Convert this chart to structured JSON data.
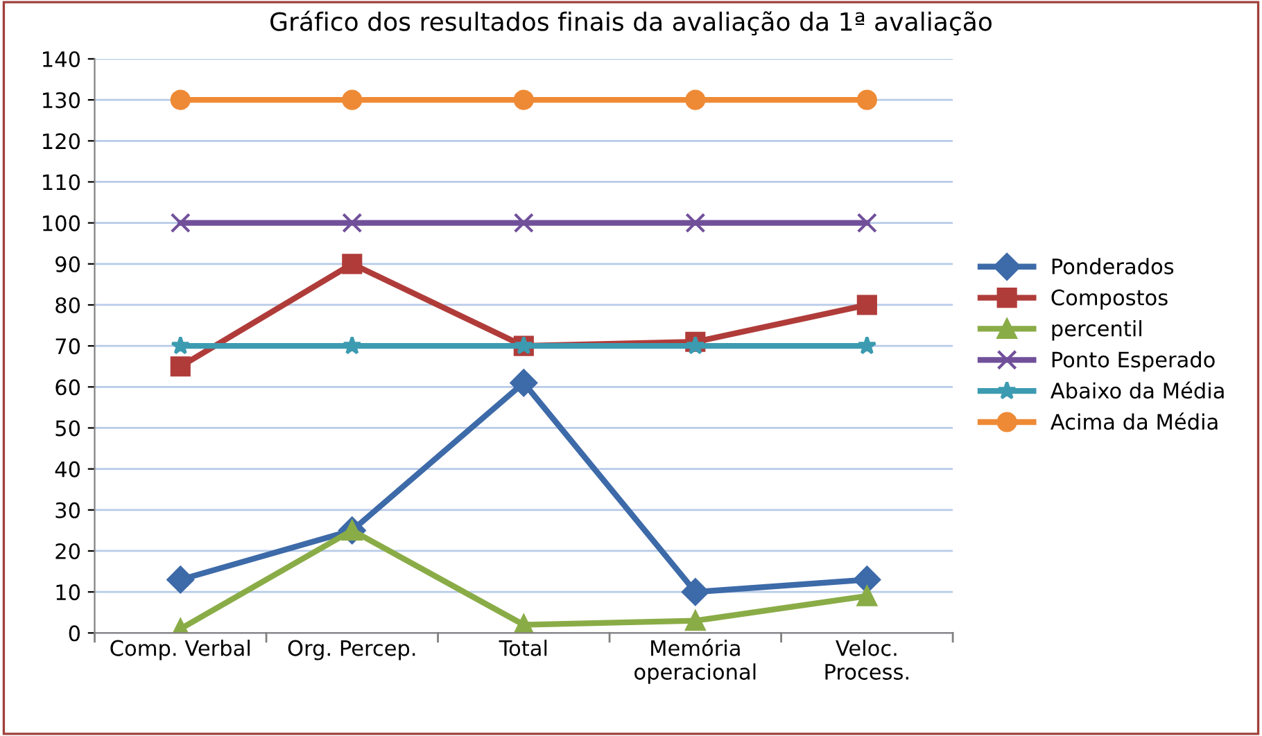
{
  "chart_data": {
    "type": "line",
    "title": "Gráfico dos resultados finais da avaliação da 1ª avaliação",
    "categories": [
      "Comp. Verbal",
      "Org. Percep.",
      "Total",
      "Memória\noperacional",
      "Veloc.\nProcess."
    ],
    "series": [
      {
        "name": "Ponderados",
        "color": "#3d6aa8",
        "marker": "diamond",
        "values": [
          13,
          25,
          61,
          10,
          13
        ]
      },
      {
        "name": "Compostos",
        "color": "#b03c3a",
        "marker": "square",
        "values": [
          65,
          90,
          70,
          71,
          80
        ]
      },
      {
        "name": "percentil",
        "color": "#8aac47",
        "marker": "triangle",
        "values": [
          1,
          25,
          2,
          3,
          9
        ]
      },
      {
        "name": "Ponto Esperado",
        "color": "#71509a",
        "marker": "cross",
        "values": [
          100,
          100,
          100,
          100,
          100
        ]
      },
      {
        "name": "Abaixo da Média",
        "color": "#3c9bb0",
        "marker": "star",
        "values": [
          70,
          70,
          70,
          70,
          70
        ]
      },
      {
        "name": "Acima da Média",
        "color": "#ee8a35",
        "marker": "circle",
        "values": [
          130,
          130,
          130,
          130,
          130
        ]
      }
    ],
    "ylim": [
      0,
      140
    ],
    "yticks": [
      0,
      10,
      20,
      30,
      40,
      50,
      60,
      70,
      80,
      90,
      100,
      110,
      120,
      130,
      140
    ],
    "grid": "y",
    "legend": "right"
  }
}
